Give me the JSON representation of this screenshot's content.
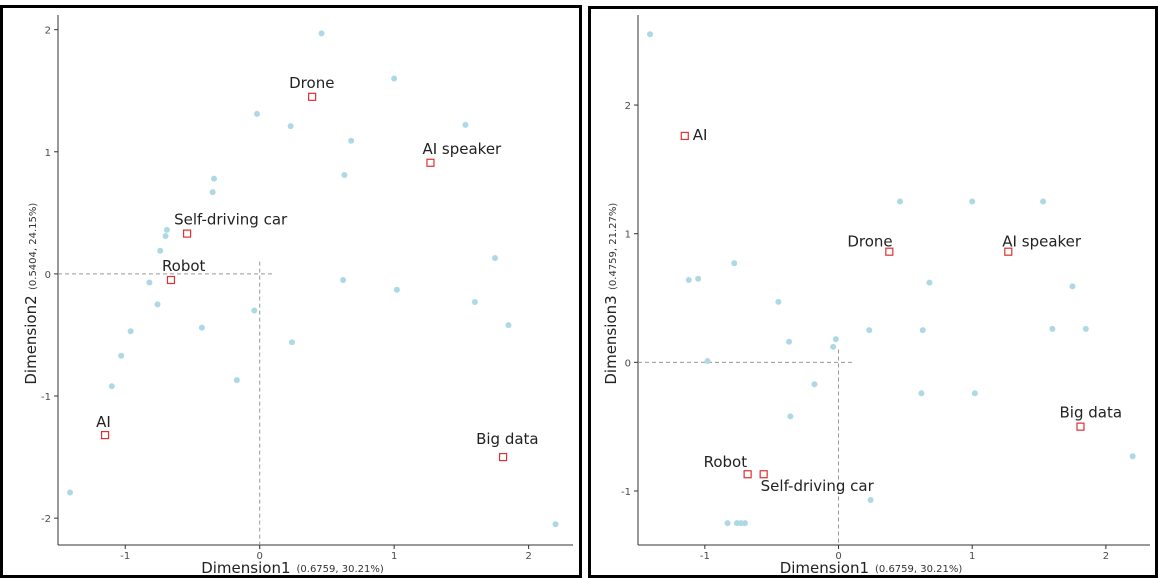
{
  "chart_data": [
    {
      "type": "scatter",
      "xlabel": "Dimension1",
      "xlabel_note": "(0.6759,  30.21%)",
      "ylabel": "Dimension2",
      "ylabel_note": "(0.5404,  24.15%)",
      "xlim": [
        -1.5,
        2.33
      ],
      "ylim": [
        -2.22,
        2.12
      ],
      "xticks": [
        -1,
        0,
        1,
        2
      ],
      "yticks": [
        -2,
        -1,
        0,
        1,
        2
      ],
      "grid": false,
      "colors": {
        "respondents": "#add8e6",
        "terms": "#e03030"
      },
      "points": [
        {
          "x": -1.41,
          "y": -1.79
        },
        {
          "x": -1.1,
          "y": -0.92
        },
        {
          "x": -1.03,
          "y": -0.67
        },
        {
          "x": -0.96,
          "y": -0.47
        },
        {
          "x": -0.82,
          "y": -0.07
        },
        {
          "x": -0.76,
          "y": -0.25
        },
        {
          "x": -0.74,
          "y": 0.19
        },
        {
          "x": -0.7,
          "y": 0.31
        },
        {
          "x": -0.69,
          "y": 0.36
        },
        {
          "x": -0.43,
          "y": -0.44
        },
        {
          "x": -0.35,
          "y": 0.67
        },
        {
          "x": -0.34,
          "y": 0.78
        },
        {
          "x": -0.17,
          "y": -0.87
        },
        {
          "x": -0.04,
          "y": -0.3
        },
        {
          "x": -0.02,
          "y": 1.31
        },
        {
          "x": 0.23,
          "y": 1.21
        },
        {
          "x": 0.24,
          "y": -0.56
        },
        {
          "x": 0.46,
          "y": 1.97
        },
        {
          "x": 0.62,
          "y": -0.05
        },
        {
          "x": 0.63,
          "y": 0.81
        },
        {
          "x": 0.68,
          "y": 1.09
        },
        {
          "x": 1.0,
          "y": 1.6
        },
        {
          "x": 1.02,
          "y": -0.13
        },
        {
          "x": 1.53,
          "y": 1.22
        },
        {
          "x": 1.6,
          "y": -0.23
        },
        {
          "x": 1.75,
          "y": 0.13
        },
        {
          "x": 1.85,
          "y": -0.42
        },
        {
          "x": 2.2,
          "y": -2.05
        }
      ],
      "terms": [
        {
          "label": "Drone",
          "x": 0.39,
          "y": 1.45
        },
        {
          "label": "AI speaker",
          "x": 1.27,
          "y": 0.91
        },
        {
          "label": "Self-driving car",
          "x": -0.54,
          "y": 0.33
        },
        {
          "label": "Robot",
          "x": -0.66,
          "y": -0.05
        },
        {
          "label": "AI",
          "x": -1.15,
          "y": -1.32
        },
        {
          "label": "Big data",
          "x": 1.81,
          "y": -1.5
        }
      ]
    },
    {
      "type": "scatter",
      "xlabel": "Dimension1",
      "xlabel_note": "(0.6759,  30.21%)",
      "ylabel": "Dimension3",
      "ylabel_note": "(0.4759,  21.27%)",
      "xlim": [
        -1.5,
        2.33
      ],
      "ylim": [
        -1.42,
        2.7
      ],
      "xticks": [
        -1,
        0,
        1,
        2
      ],
      "yticks": [
        -1,
        0,
        1,
        2
      ],
      "grid": false,
      "colors": {
        "respondents": "#add8e6",
        "terms": "#e03030"
      },
      "points": [
        {
          "x": -1.41,
          "y": 2.55
        },
        {
          "x": -1.12,
          "y": 0.64
        },
        {
          "x": -1.05,
          "y": 0.65
        },
        {
          "x": -0.98,
          "y": 0.01
        },
        {
          "x": -0.83,
          "y": -1.25
        },
        {
          "x": -0.78,
          "y": 0.77
        },
        {
          "x": -0.76,
          "y": -1.25
        },
        {
          "x": -0.73,
          "y": -1.25
        },
        {
          "x": -0.7,
          "y": -1.25
        },
        {
          "x": -0.45,
          "y": 0.47
        },
        {
          "x": -0.37,
          "y": 0.16
        },
        {
          "x": -0.36,
          "y": -0.42
        },
        {
          "x": -0.18,
          "y": -0.17
        },
        {
          "x": -0.04,
          "y": 0.12
        },
        {
          "x": -0.02,
          "y": 0.18
        },
        {
          "x": 0.23,
          "y": 0.25
        },
        {
          "x": 0.24,
          "y": -1.07
        },
        {
          "x": 0.46,
          "y": 1.25
        },
        {
          "x": 0.62,
          "y": -0.24
        },
        {
          "x": 0.63,
          "y": 0.25
        },
        {
          "x": 0.68,
          "y": 0.62
        },
        {
          "x": 1.0,
          "y": 1.25
        },
        {
          "x": 1.02,
          "y": -0.24
        },
        {
          "x": 1.53,
          "y": 1.25
        },
        {
          "x": 1.6,
          "y": 0.26
        },
        {
          "x": 1.75,
          "y": 0.59
        },
        {
          "x": 1.85,
          "y": 0.26
        },
        {
          "x": 2.2,
          "y": -0.73
        }
      ],
      "terms": [
        {
          "label": "AI",
          "x": -1.15,
          "y": 1.76
        },
        {
          "label": "Drone",
          "x": 0.38,
          "y": 0.86
        },
        {
          "label": "AI speaker",
          "x": 1.27,
          "y": 0.86
        },
        {
          "label": "Big data",
          "x": 1.81,
          "y": -0.5
        },
        {
          "label": "Robot",
          "x": -0.68,
          "y": -0.87
        },
        {
          "label": "Self-driving car",
          "x": -0.56,
          "y": -0.87
        }
      ]
    }
  ]
}
